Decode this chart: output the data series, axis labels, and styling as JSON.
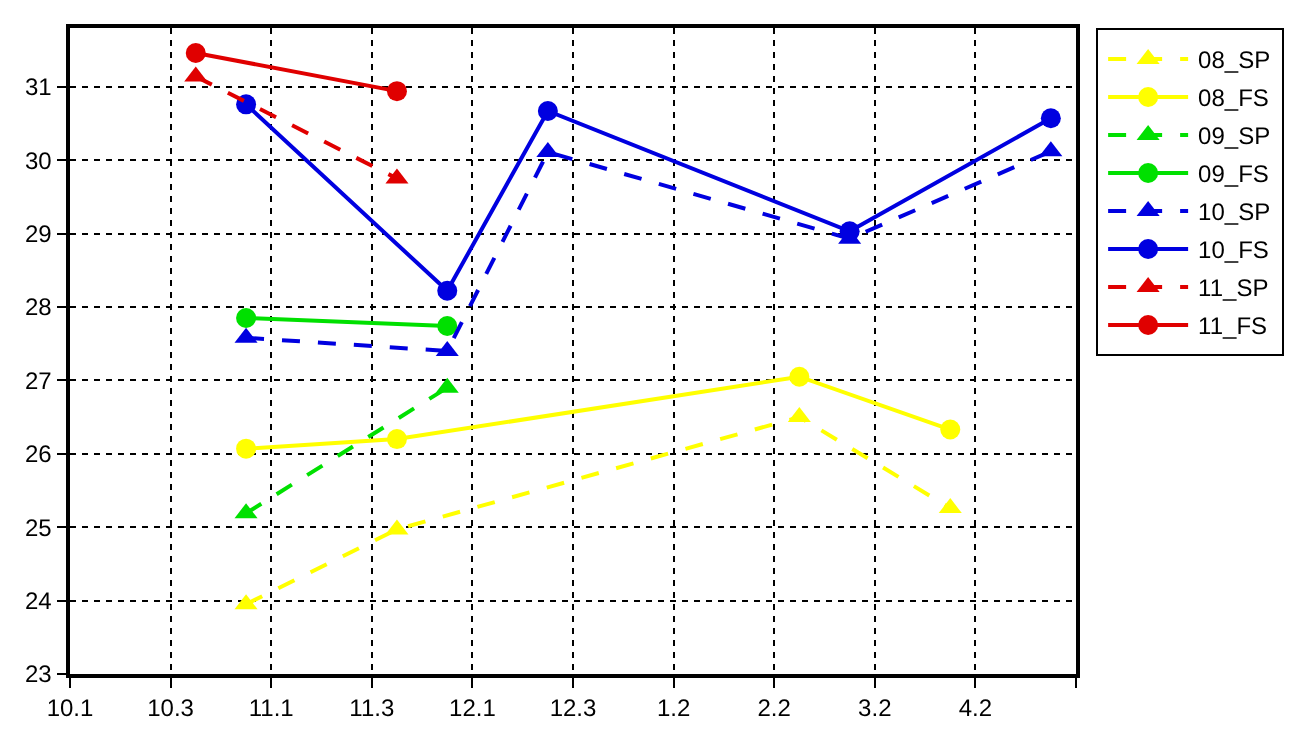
{
  "chart_data": {
    "type": "line",
    "categories": [
      "10.1",
      null,
      null,
      null,
      "10.3",
      null,
      null,
      null,
      "11.1",
      null,
      null,
      null,
      "11.3",
      null,
      null,
      null,
      "12.1",
      null,
      null,
      null,
      "12.3",
      null,
      null,
      null,
      "1.2",
      null,
      null,
      null,
      "2.2",
      null,
      null,
      null,
      "3.2",
      null,
      null,
      null,
      "4.2",
      null,
      null,
      null,
      null
    ],
    "ylim": [
      23,
      31.8
    ],
    "yticks": [
      23,
      24,
      25,
      26,
      27,
      28,
      29,
      30,
      31
    ],
    "grid": true,
    "legend": "top right",
    "series": [
      {
        "name": "08_SP",
        "color": "#ffff00",
        "marker": "triangle",
        "line_style": "dashed",
        "values": [
          null,
          null,
          null,
          null,
          null,
          null,
          null,
          23.95,
          null,
          null,
          null,
          null,
          null,
          24.97,
          null,
          null,
          null,
          null,
          null,
          null,
          null,
          null,
          null,
          null,
          null,
          null,
          null,
          null,
          null,
          26.5,
          null,
          null,
          null,
          null,
          null,
          25.26,
          null,
          null,
          null,
          null,
          null
        ]
      },
      {
        "name": "08_FS",
        "color": "#ffff00",
        "marker": "circle",
        "line_style": "solid",
        "values": [
          null,
          null,
          null,
          null,
          null,
          null,
          null,
          26.07,
          null,
          null,
          null,
          null,
          null,
          26.2,
          null,
          null,
          null,
          null,
          null,
          null,
          null,
          null,
          null,
          null,
          null,
          null,
          null,
          null,
          null,
          27.05,
          null,
          null,
          null,
          null,
          null,
          26.33,
          null,
          null,
          null,
          null,
          null
        ]
      },
      {
        "name": "09_SP",
        "color": "#00e000",
        "marker": "triangle",
        "line_style": "dashed",
        "values": [
          null,
          null,
          null,
          null,
          null,
          null,
          null,
          25.19,
          null,
          null,
          null,
          null,
          null,
          null,
          null,
          26.9,
          null,
          null,
          null,
          null,
          null,
          null,
          null,
          null,
          null,
          null,
          null,
          null,
          null,
          null,
          null,
          null,
          null,
          null,
          null,
          null,
          null,
          null,
          null,
          null,
          null
        ]
      },
      {
        "name": "09_FS",
        "color": "#00e000",
        "marker": "circle",
        "line_style": "solid",
        "values": [
          null,
          null,
          null,
          null,
          null,
          null,
          null,
          27.85,
          null,
          null,
          null,
          null,
          null,
          null,
          null,
          27.74,
          null,
          null,
          null,
          null,
          null,
          null,
          null,
          null,
          null,
          null,
          null,
          null,
          null,
          null,
          null,
          null,
          null,
          null,
          null,
          null,
          null,
          null,
          null,
          null,
          null
        ]
      },
      {
        "name": "10_SP",
        "color": "#0000e0",
        "marker": "triangle",
        "line_style": "dashed",
        "values": [
          null,
          null,
          null,
          null,
          null,
          null,
          null,
          27.58,
          null,
          null,
          null,
          null,
          null,
          null,
          null,
          27.4,
          null,
          null,
          null,
          30.11,
          null,
          null,
          null,
          null,
          null,
          null,
          null,
          null,
          null,
          null,
          null,
          28.93,
          null,
          null,
          null,
          null,
          null,
          null,
          null,
          30.12,
          null
        ]
      },
      {
        "name": "10_FS",
        "color": "#0000e0",
        "marker": "circle",
        "line_style": "solid",
        "values": [
          null,
          null,
          null,
          null,
          null,
          null,
          null,
          30.76,
          null,
          null,
          null,
          null,
          null,
          null,
          null,
          28.22,
          null,
          null,
          null,
          30.67,
          null,
          null,
          null,
          null,
          null,
          null,
          null,
          null,
          null,
          null,
          null,
          29.03,
          null,
          null,
          null,
          null,
          null,
          null,
          null,
          30.57,
          null
        ]
      },
      {
        "name": "11_SP",
        "color": "#e00000",
        "marker": "triangle",
        "line_style": "dashed",
        "values": [
          null,
          null,
          null,
          null,
          null,
          31.14,
          null,
          null,
          null,
          null,
          null,
          null,
          null,
          29.75,
          null,
          null,
          null,
          null,
          null,
          null,
          null,
          null,
          null,
          null,
          null,
          null,
          null,
          null,
          null,
          null,
          null,
          null,
          null,
          null,
          null,
          null,
          null,
          null,
          null,
          null,
          null
        ]
      },
      {
        "name": "11_FS",
        "color": "#e00000",
        "marker": "circle",
        "line_style": "solid",
        "values": [
          null,
          null,
          null,
          null,
          null,
          31.46,
          null,
          null,
          null,
          null,
          null,
          null,
          null,
          30.94,
          null,
          null,
          null,
          null,
          null,
          null,
          null,
          null,
          null,
          null,
          null,
          null,
          null,
          null,
          null,
          null,
          null,
          null,
          null,
          null,
          null,
          null,
          null,
          null,
          null,
          null,
          null
        ]
      }
    ]
  }
}
